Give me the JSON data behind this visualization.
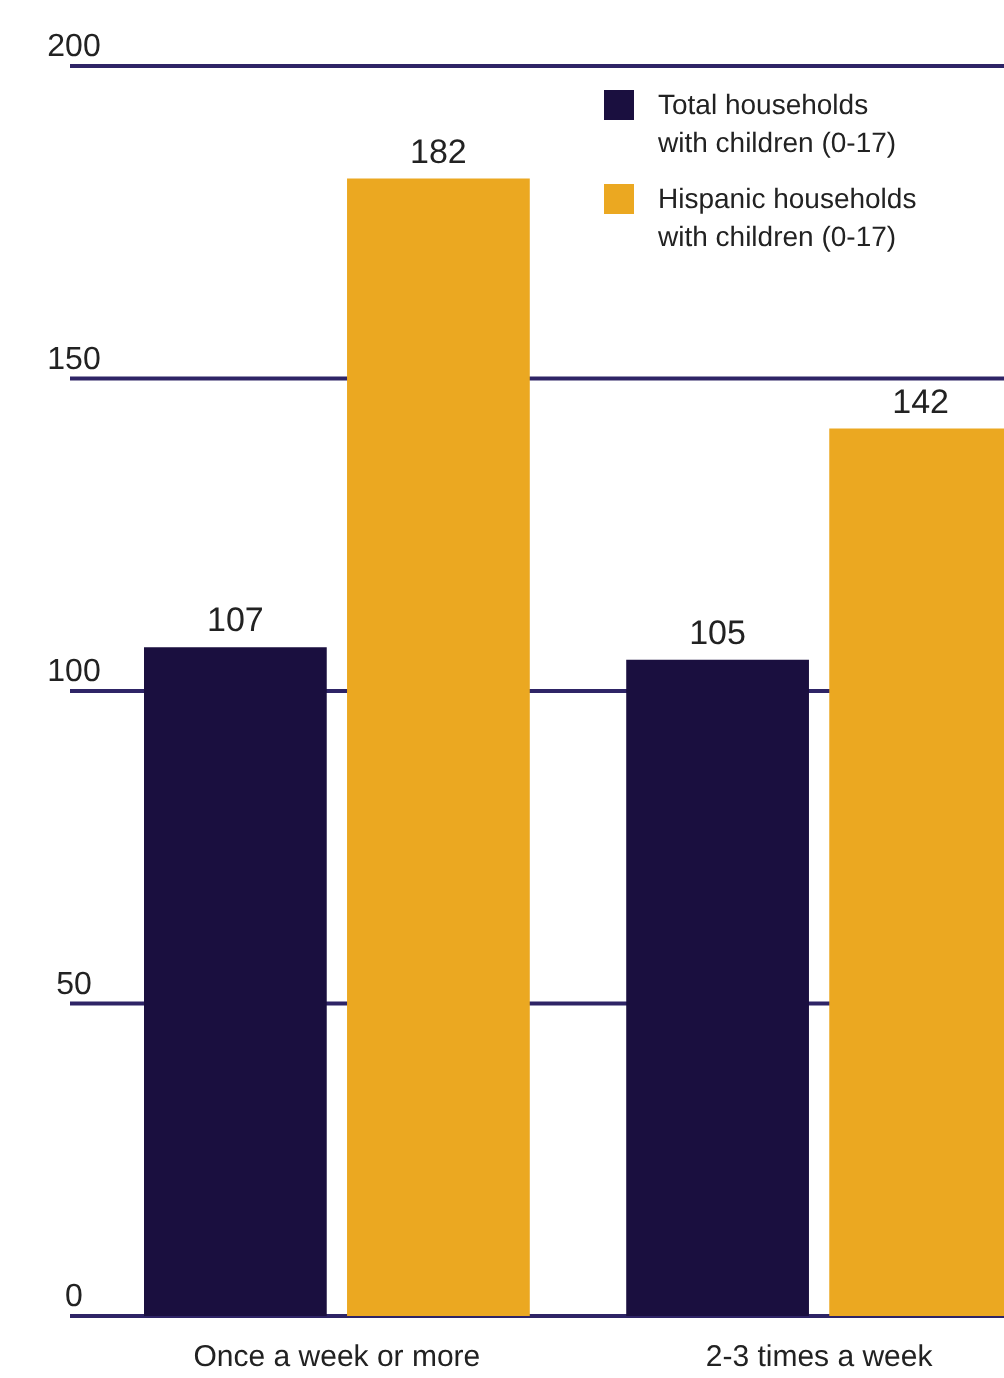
{
  "chart_data": {
    "type": "bar",
    "categories": [
      "Once a week or more",
      "2-3 times a week"
    ],
    "series": [
      {
        "name": "Total households with children (0-17)",
        "color": "#1a0f3f",
        "values": [
          107,
          105
        ]
      },
      {
        "name": "Hispanic households with children (0-17)",
        "color": "#eba821",
        "values": [
          182,
          142
        ]
      }
    ],
    "ylim": [
      0,
      200
    ],
    "yticks": [
      0,
      50,
      100,
      150,
      200
    ],
    "grid": "y",
    "legend": "top right",
    "data_labels": true
  }
}
